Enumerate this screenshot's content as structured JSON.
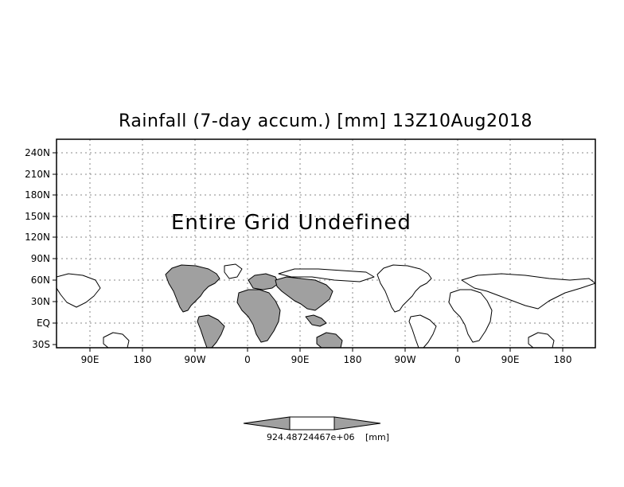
{
  "title": "Rainfall (7-day accum.) [mm] 13Z10Aug2018",
  "message": "Entire Grid Undefined",
  "y_axis_labels": [
    "240N",
    "210N",
    "180N",
    "150N",
    "120N",
    "90N",
    "60N",
    "30N",
    "EQ",
    "30S"
  ],
  "x_axis_labels": [
    "90E",
    "180",
    "90W",
    "0",
    "90E",
    "180",
    "90W",
    "0",
    "90E",
    "180"
  ],
  "colorbar": {
    "value_label": "924.48724467e+06",
    "unit_label": "[mm]"
  },
  "colors": {
    "land_fill": "#a0a0a0",
    "grid": "#888888",
    "frame": "#000000",
    "colorbar_end": "#a0a0a0"
  }
}
